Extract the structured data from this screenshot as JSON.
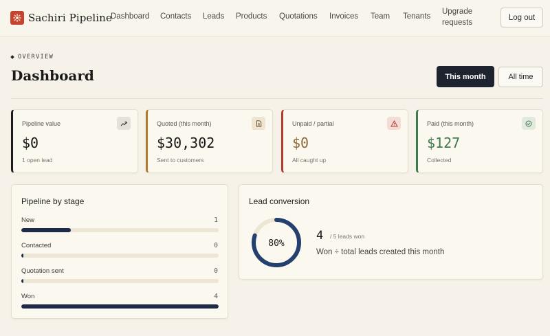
{
  "header": {
    "brand": "Sachiri Pipeline",
    "nav": [
      {
        "label": "Dashboard"
      },
      {
        "label": "Contacts"
      },
      {
        "label": "Leads"
      },
      {
        "label": "Products"
      },
      {
        "label": "Quotations"
      },
      {
        "label": "Invoices"
      },
      {
        "label": "Team"
      },
      {
        "label": "Tenants"
      },
      {
        "label_line1": "Upgrade",
        "label_line2": "requests"
      }
    ],
    "logout_label": "Log out"
  },
  "page": {
    "eyebrow": "OVERVIEW",
    "title": "Dashboard",
    "range": {
      "this_month": "This month",
      "all_time": "All time",
      "selected": "This month"
    }
  },
  "stats": [
    {
      "label": "Pipeline value",
      "value": "$0",
      "sub": "1 open lead",
      "icon": "trend-up-icon",
      "accent": "#1b1b1b",
      "value_color": "#161616"
    },
    {
      "label": "Quoted (this month)",
      "value": "$30,302",
      "sub": "Sent to customers",
      "icon": "document-icon",
      "accent": "#b07a2c",
      "value_color": "#161616"
    },
    {
      "label": "Unpaid / partial",
      "value": "$0",
      "sub": "All caught up",
      "icon": "warning-icon",
      "accent": "#b33a2c",
      "value_color": "#8c6a3a"
    },
    {
      "label": "Paid (this month)",
      "value": "$127",
      "sub": "Collected",
      "icon": "check-circle-icon",
      "accent": "#3e7a4c",
      "value_color": "#3e7a4c"
    }
  ],
  "pipeline": {
    "title": "Pipeline by stage",
    "max": 4,
    "stages": [
      {
        "label": "New",
        "count": 1
      },
      {
        "label": "Contacted",
        "count": 0
      },
      {
        "label": "Quotation sent",
        "count": 0
      },
      {
        "label": "Won",
        "count": 4
      }
    ]
  },
  "conversion": {
    "title": "Lead conversion",
    "percent_label": "80%",
    "percent": 80,
    "won": "4",
    "total_label": "/ 5 leads won",
    "description": "Won ÷ total leads created this month",
    "color": "#23406e"
  }
}
